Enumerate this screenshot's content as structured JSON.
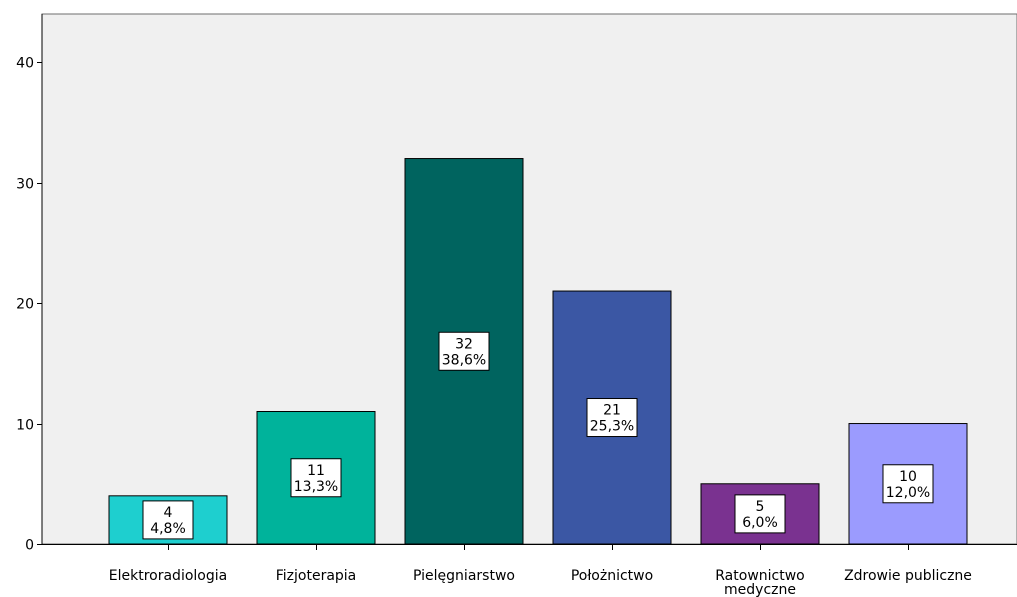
{
  "chart_data": {
    "type": "bar",
    "categories": [
      [
        "Elektroradiologia"
      ],
      [
        "Fizjoterapia"
      ],
      [
        "Pielęgniarstwo"
      ],
      [
        "Położnictwo"
      ],
      [
        "Ratownictwo",
        "medyczne"
      ],
      [
        "Zdrowie publiczne"
      ]
    ],
    "values": [
      4,
      11,
      32,
      21,
      5,
      10
    ],
    "value_labels": [
      "4",
      "11",
      "32",
      "21",
      "5",
      "10"
    ],
    "percent_labels": [
      "4,8%",
      "13,3%",
      "38,6%",
      "25,3%",
      "6,0%",
      "12,0%"
    ],
    "colors": [
      "#1ecfcf",
      "#00b39b",
      "#00645f",
      "#3b57a4",
      "#7a3290",
      "#9b9bfe"
    ],
    "ylim": [
      0,
      44
    ],
    "yticks": [
      0,
      10,
      20,
      30,
      40
    ],
    "plot_background": "#f0f0f0",
    "grid": false,
    "legend": "none"
  }
}
